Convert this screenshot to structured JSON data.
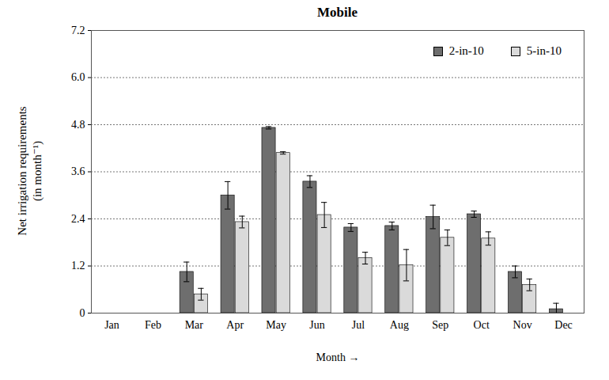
{
  "chart_data": {
    "type": "bar",
    "title": "Mobile",
    "x_label": "Month",
    "y_label": "Net irrigation requirements\n(in month⁻¹)",
    "categories": [
      "Jan",
      "Feb",
      "Mar",
      "Apr",
      "May",
      "Jun",
      "Jul",
      "Aug",
      "Sep",
      "Oct",
      "Nov",
      "Dec"
    ],
    "series": [
      {
        "name": "2-in-10",
        "color": "#6e6e6e",
        "values": [
          0,
          0,
          1.05,
          3.0,
          4.72,
          3.35,
          2.18,
          2.22,
          2.45,
          2.52,
          1.05,
          0.1
        ],
        "errors": [
          0,
          0,
          0.25,
          0.35,
          0.03,
          0.15,
          0.1,
          0.1,
          0.3,
          0.08,
          0.15,
          0.15
        ]
      },
      {
        "name": "5-in-10",
        "color": "#dadada",
        "values": [
          0,
          0,
          0.48,
          2.32,
          4.08,
          2.5,
          1.4,
          1.22,
          1.92,
          1.9,
          0.72,
          0
        ],
        "errors": [
          0,
          0,
          0.15,
          0.15,
          0.03,
          0.32,
          0.15,
          0.4,
          0.2,
          0.17,
          0.15,
          0
        ]
      }
    ],
    "ylim": [
      0,
      7.2
    ],
    "yticks": [
      0,
      1.2,
      2.4,
      3.6,
      4.8,
      {
        "value": 6,
        "label": "6.0"
      },
      7.2
    ],
    "grid": true,
    "legend": "top-right"
  }
}
